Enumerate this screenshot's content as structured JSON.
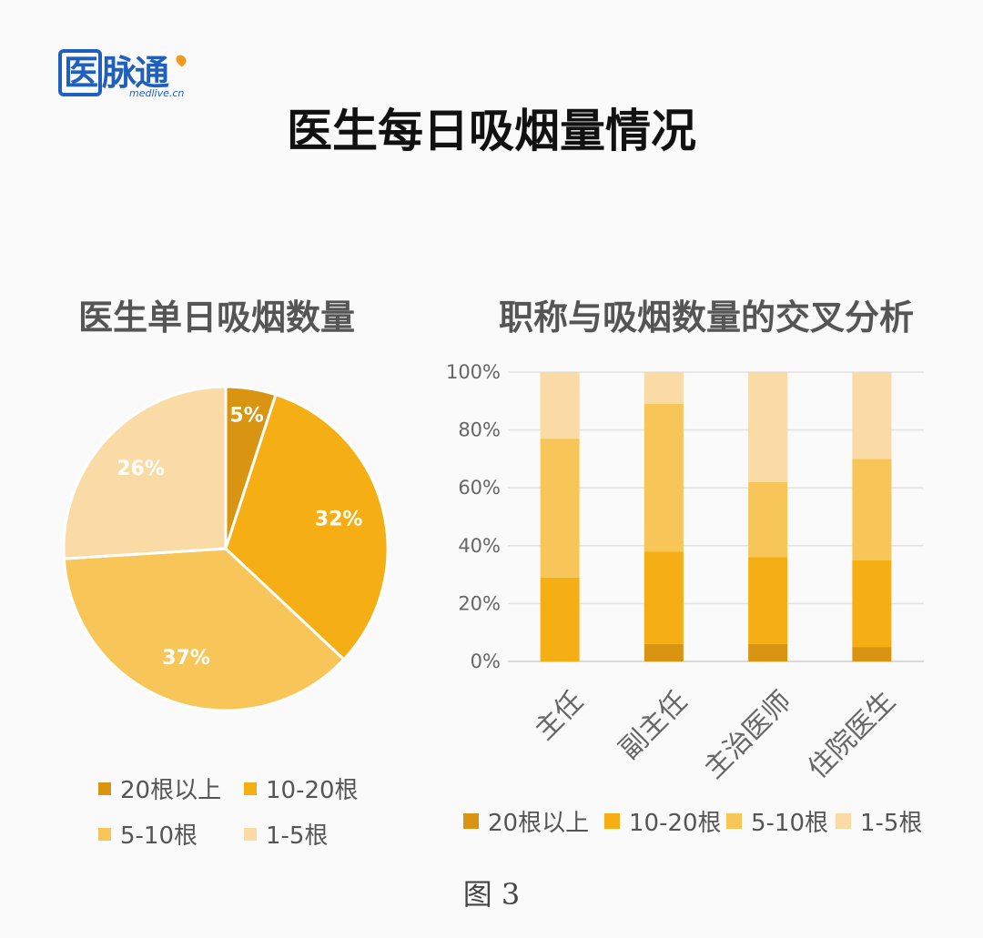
{
  "logo": {
    "text": "医脉通",
    "first_char": "医",
    "rest_chars": "脉通",
    "sub": "medlive.cn"
  },
  "title": "医生每日吸烟量情况",
  "caption": "图 3",
  "colors": {
    "20plus": "#d99412",
    "10to20": "#f5ae13",
    "5to10": "#f8c658",
    "1to5": "#fbdba5"
  },
  "chart_data": [
    {
      "type": "pie",
      "title": "医生单日吸烟数量",
      "legend_position": "bottom",
      "slices": [
        {
          "label": "20根以上",
          "value": 5,
          "display": "5%",
          "color": "#d99412"
        },
        {
          "label": "10-20根",
          "value": 32,
          "display": "32%",
          "color": "#f5ae13"
        },
        {
          "label": "5-10根",
          "value": 37,
          "display": "37%",
          "color": "#f8c658"
        },
        {
          "label": "1-5根",
          "value": 26,
          "display": "26%",
          "color": "#fbdba5"
        }
      ]
    },
    {
      "type": "bar",
      "stacked": "percent",
      "title": "职称与吸烟数量的交叉分析",
      "categories": [
        "主任",
        "副主任",
        "主治医师",
        "住院医生"
      ],
      "ylim": [
        0,
        100
      ],
      "yticks": [
        "0%",
        "20%",
        "40%",
        "60%",
        "80%",
        "100%"
      ],
      "grid": true,
      "legend_position": "bottom",
      "series": [
        {
          "name": "20根以上",
          "color": "#d99412",
          "values": [
            0,
            6,
            6,
            5
          ]
        },
        {
          "name": "10-20根",
          "color": "#f5ae13",
          "values": [
            29,
            32,
            30,
            30
          ]
        },
        {
          "name": "5-10根",
          "color": "#f8c658",
          "values": [
            48,
            51,
            26,
            35
          ]
        },
        {
          "name": "1-5根",
          "color": "#fbdba5",
          "values": [
            23,
            11,
            38,
            30
          ]
        }
      ]
    }
  ]
}
